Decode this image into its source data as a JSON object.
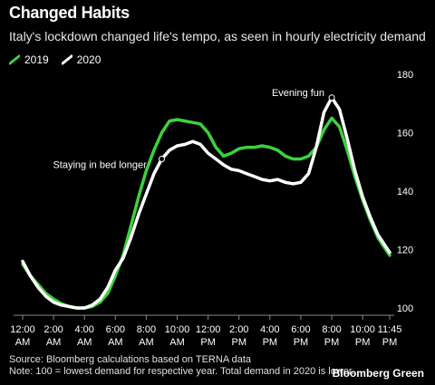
{
  "header": {
    "title": "Changed Habits",
    "subtitle": "Italy's lockdown changed life's tempo, as seen in hourly electricity demand"
  },
  "legend": [
    {
      "name": "2019",
      "color": "#3dd13d"
    },
    {
      "name": "2020",
      "color": "#ffffff"
    }
  ],
  "footer": {
    "source": "Source: Bloomberg calculations based on TERNA data",
    "note": "Note: 100 = lowest demand for respective year. Total demand in 2020 is lower.",
    "brand": "Bloomberg Green"
  },
  "chart_data": {
    "type": "line",
    "x_unit": "hours since midnight",
    "xlim": [
      0,
      23.75
    ],
    "ylim": [
      100,
      180
    ],
    "y_ticks": [
      100,
      120,
      140,
      160,
      180
    ],
    "x_ticks": [
      {
        "x": 0,
        "line1": "12:00",
        "line2": "AM"
      },
      {
        "x": 2,
        "line1": "2:00",
        "line2": "AM"
      },
      {
        "x": 4,
        "line1": "4:00",
        "line2": "AM"
      },
      {
        "x": 6,
        "line1": "6:00",
        "line2": "AM"
      },
      {
        "x": 8,
        "line1": "8:00",
        "line2": "AM"
      },
      {
        "x": 10,
        "line1": "10:00",
        "line2": "AM"
      },
      {
        "x": 12,
        "line1": "12:00",
        "line2": "PM"
      },
      {
        "x": 14,
        "line1": "2:00",
        "line2": "PM"
      },
      {
        "x": 16,
        "line1": "4:00",
        "line2": "PM"
      },
      {
        "x": 18,
        "line1": "6:00",
        "line2": "PM"
      },
      {
        "x": 20,
        "line1": "8:00",
        "line2": "PM"
      },
      {
        "x": 22,
        "line1": "10:00",
        "line2": "PM"
      },
      {
        "x": 23.75,
        "line1": "11:45",
        "line2": "PM"
      }
    ],
    "grid": false,
    "series": [
      {
        "name": "2019",
        "color": "#3dd13d",
        "points": [
          [
            0,
            115
          ],
          [
            0.5,
            111
          ],
          [
            1,
            108
          ],
          [
            1.5,
            105
          ],
          [
            2,
            103
          ],
          [
            2.5,
            101.5
          ],
          [
            3,
            100.5
          ],
          [
            3.5,
            100
          ],
          [
            4,
            100
          ],
          [
            4.5,
            100.5
          ],
          [
            5,
            102
          ],
          [
            5.5,
            105
          ],
          [
            6,
            111
          ],
          [
            6.5,
            118
          ],
          [
            7,
            128
          ],
          [
            7.5,
            138
          ],
          [
            8,
            147
          ],
          [
            8.5,
            154
          ],
          [
            9,
            160
          ],
          [
            9.5,
            164
          ],
          [
            10,
            164.5
          ],
          [
            10.5,
            164
          ],
          [
            11,
            163.5
          ],
          [
            11.5,
            163
          ],
          [
            12,
            160
          ],
          [
            12.5,
            155
          ],
          [
            13,
            152
          ],
          [
            13.5,
            153
          ],
          [
            14,
            154.5
          ],
          [
            14.5,
            155
          ],
          [
            15,
            155
          ],
          [
            15.5,
            155.5
          ],
          [
            16,
            155
          ],
          [
            16.5,
            154
          ],
          [
            17,
            152
          ],
          [
            17.5,
            151
          ],
          [
            18,
            151
          ],
          [
            18.5,
            152
          ],
          [
            19,
            155
          ],
          [
            19.5,
            161
          ],
          [
            20,
            165
          ],
          [
            20.5,
            162
          ],
          [
            21,
            154
          ],
          [
            21.5,
            145
          ],
          [
            22,
            137
          ],
          [
            22.5,
            130
          ],
          [
            23,
            124
          ],
          [
            23.75,
            118
          ]
        ]
      },
      {
        "name": "2020",
        "color": "#ffffff",
        "points": [
          [
            0,
            116
          ],
          [
            0.5,
            111
          ],
          [
            1,
            107
          ],
          [
            1.5,
            104
          ],
          [
            2,
            102
          ],
          [
            2.5,
            101
          ],
          [
            3,
            100.5
          ],
          [
            3.5,
            100
          ],
          [
            4,
            100
          ],
          [
            4.5,
            101
          ],
          [
            5,
            103
          ],
          [
            5.5,
            107
          ],
          [
            6,
            113
          ],
          [
            6.5,
            117
          ],
          [
            7,
            124
          ],
          [
            7.5,
            132
          ],
          [
            8,
            139
          ],
          [
            8.5,
            146
          ],
          [
            9,
            151
          ],
          [
            9.5,
            154
          ],
          [
            10,
            155.5
          ],
          [
            10.5,
            156
          ],
          [
            11,
            157
          ],
          [
            11.5,
            156
          ],
          [
            12,
            153
          ],
          [
            12.5,
            151
          ],
          [
            13,
            149
          ],
          [
            13.5,
            147.5
          ],
          [
            14,
            147
          ],
          [
            14.5,
            146
          ],
          [
            15,
            145
          ],
          [
            15.5,
            144
          ],
          [
            16,
            143.5
          ],
          [
            16.5,
            144
          ],
          [
            17,
            143
          ],
          [
            17.5,
            142.5
          ],
          [
            18,
            143
          ],
          [
            18.5,
            146
          ],
          [
            19,
            155
          ],
          [
            19.5,
            167
          ],
          [
            20,
            172
          ],
          [
            20.5,
            168
          ],
          [
            21,
            158
          ],
          [
            21.5,
            147
          ],
          [
            22,
            138
          ],
          [
            22.5,
            131
          ],
          [
            23,
            125
          ],
          [
            23.75,
            119
          ]
        ]
      }
    ],
    "annotations": [
      {
        "text": "Staying in bed longer",
        "x": 9,
        "y": 151
      },
      {
        "text": "Evening fun",
        "x": 20,
        "y": 172
      }
    ]
  }
}
